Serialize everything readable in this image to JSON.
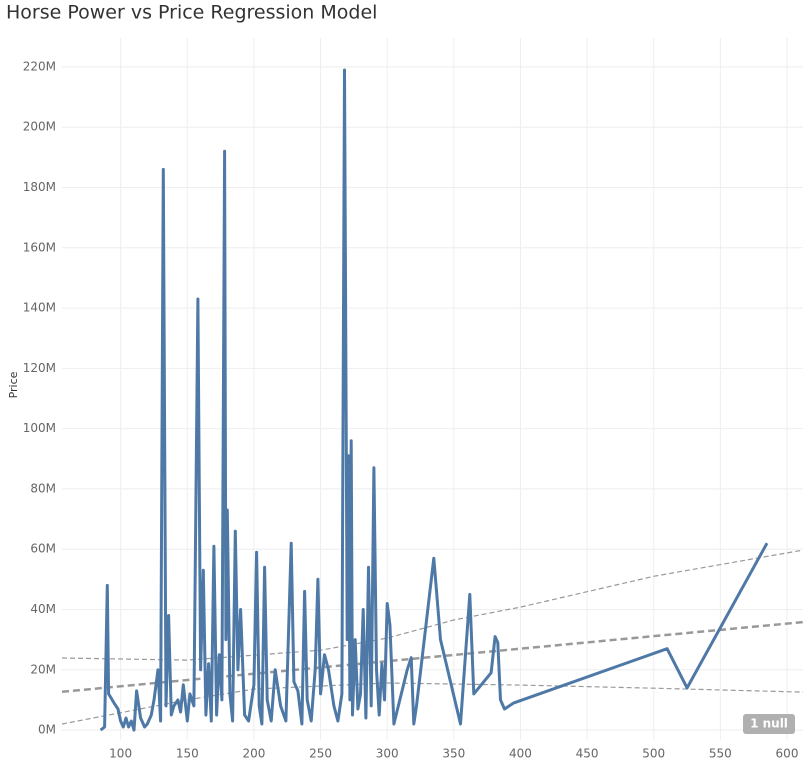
{
  "chart_data": {
    "type": "line",
    "title": "Horse Power vs Price Regression Model",
    "y_label": "Price",
    "annotation": "1 null",
    "color": "#4e79a7",
    "x": [
      85,
      88,
      90,
      91,
      95,
      98,
      100,
      102,
      104,
      106,
      108,
      110,
      112,
      115,
      118,
      120,
      123,
      125,
      128,
      130,
      132,
      134,
      136,
      138,
      140,
      143,
      145,
      147,
      150,
      152,
      155,
      158,
      160,
      162,
      164,
      166,
      168,
      170,
      172,
      174,
      176,
      178,
      179,
      180,
      182,
      184,
      186,
      188,
      190,
      193,
      196,
      200,
      202,
      204,
      206,
      208,
      210,
      213,
      216,
      220,
      224,
      228,
      230,
      233,
      236,
      238,
      240,
      243,
      246,
      248,
      250,
      253,
      256,
      260,
      263,
      266,
      268,
      270,
      271,
      272,
      273,
      274,
      276,
      278,
      280,
      282,
      284,
      286,
      288,
      290,
      292,
      294,
      296,
      298,
      300,
      302,
      305,
      315,
      318,
      320,
      322,
      335,
      340,
      355,
      362,
      365,
      378,
      381,
      383,
      385,
      388,
      395,
      510,
      525,
      585
    ],
    "values": [
      0,
      1000000,
      48000000,
      12000000,
      9000000,
      7000000,
      3000000,
      1000000,
      4000000,
      1000000,
      3000000,
      0,
      13000000,
      4000000,
      1000000,
      2000000,
      5000000,
      10000000,
      20000000,
      3000000,
      186000000,
      8000000,
      38000000,
      5000000,
      8000000,
      10000000,
      6000000,
      15000000,
      3000000,
      12000000,
      8000000,
      143000000,
      20000000,
      53000000,
      5000000,
      22000000,
      3000000,
      61000000,
      5000000,
      25000000,
      10000000,
      192000000,
      30000000,
      73000000,
      12000000,
      3000000,
      66000000,
      20000000,
      40000000,
      5000000,
      3000000,
      15000000,
      59000000,
      8000000,
      2000000,
      54000000,
      10000000,
      3000000,
      20000000,
      8000000,
      3000000,
      62000000,
      16000000,
      13000000,
      2000000,
      46000000,
      10000000,
      3000000,
      20000000,
      50000000,
      12000000,
      25000000,
      20000000,
      8000000,
      3000000,
      12000000,
      219000000,
      30000000,
      91000000,
      10000000,
      96000000,
      5000000,
      30000000,
      7000000,
      12000000,
      40000000,
      4000000,
      54000000,
      8000000,
      87000000,
      20000000,
      5000000,
      22000000,
      10000000,
      42000000,
      35000000,
      2000000,
      20000000,
      24000000,
      2000000,
      8000000,
      57000000,
      30000000,
      2000000,
      45000000,
      12000000,
      19000000,
      31000000,
      29000000,
      10000000,
      7000000,
      9000000,
      27000000,
      14000000,
      62000000
    ],
    "trend_lines": [
      {
        "x": [
          56,
          612
        ],
        "values": [
          12700000,
          35800000
        ],
        "color": "#999999",
        "width": 2.5,
        "dash": "7 4"
      },
      {
        "x": [
          56,
          150,
          250,
          300,
          350,
          400,
          500,
          612
        ],
        "values": [
          23900000,
          23200000,
          26500000,
          30500000,
          36500000,
          40800000,
          51000000,
          59700000
        ],
        "color": "#999999",
        "width": 1.2,
        "dash": "5 3"
      },
      {
        "x": [
          56,
          150,
          200,
          300,
          400,
          500,
          612
        ],
        "values": [
          2000000,
          10000000,
          13600000,
          15600000,
          14900000,
          13900000,
          12600000
        ],
        "color": "#999999",
        "width": 1.2,
        "dash": "5 3"
      }
    ],
    "xlim": [
      56,
      612
    ],
    "xticks": [
      100,
      150,
      200,
      250,
      300,
      350,
      400,
      450,
      500,
      550,
      600
    ],
    "ylim": [
      -3300000,
      229600000
    ],
    "yticks": [
      {
        "value": 0,
        "label": "0M"
      },
      {
        "value": 20000000,
        "label": "20M"
      },
      {
        "value": 40000000,
        "label": "40M"
      },
      {
        "value": 60000000,
        "label": "60M"
      },
      {
        "value": 80000000,
        "label": "80M"
      },
      {
        "value": 100000000,
        "label": "100M"
      },
      {
        "value": 120000000,
        "label": "120M"
      },
      {
        "value": 140000000,
        "label": "140M"
      },
      {
        "value": 160000000,
        "label": "160M"
      },
      {
        "value": 180000000,
        "label": "180M"
      },
      {
        "value": 200000000,
        "label": "200M"
      },
      {
        "value": 220000000,
        "label": "220M"
      }
    ],
    "grid": true
  }
}
